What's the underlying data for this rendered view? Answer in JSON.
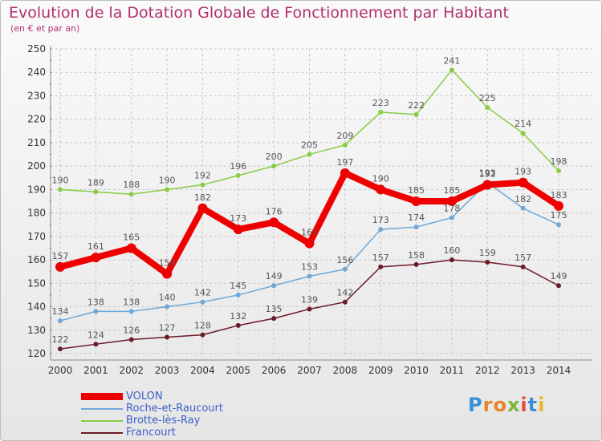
{
  "header": {
    "title": "Evolution de la Dotation Globale de Fonctionnement par Habitant",
    "subtitle": "(en € et par an)"
  },
  "logo": {
    "letters": [
      "P",
      "r",
      "o",
      "x",
      "i",
      "t",
      "i"
    ],
    "colors": [
      "#3a8fd8",
      "#e8832a",
      "#e8832a",
      "#7ab83a",
      "#e84a3a",
      "#3a8fd8",
      "#e8b82a"
    ]
  },
  "colors": {
    "VOLON": "#ee0000",
    "Roche-et-Raucourt": "#6fa8d6",
    "Brotte-lès-Ray": "#88cc44",
    "Francourt": "#6b1a28",
    "grid": "#c8c8c8",
    "axis_text": "#333333"
  },
  "chart_data": {
    "type": "line",
    "title": "Evolution de la Dotation Globale de Fonctionnement par Habitant",
    "subtitle": "(en € et par an)",
    "x": [
      "2000",
      "2001",
      "2002",
      "2003",
      "2004",
      "2005",
      "2006",
      "2007",
      "2008",
      "2009",
      "2010",
      "2011",
      "2012",
      "2013",
      "2014"
    ],
    "ylim": [
      120,
      250
    ],
    "yticks": [
      120,
      130,
      140,
      150,
      160,
      170,
      180,
      190,
      200,
      210,
      220,
      230,
      240,
      250
    ],
    "grid": true,
    "legend_position": "bottom-left",
    "series": [
      {
        "name": "Brotte-lès-Ray",
        "values": [
          190,
          189,
          188,
          190,
          192,
          196,
          200,
          205,
          209,
          223,
          222,
          241,
          225,
          214,
          198
        ]
      },
      {
        "name": "Roche-et-Raucourt",
        "values": [
          134,
          138,
          138,
          140,
          142,
          145,
          149,
          153,
          156,
          173,
          174,
          178,
          193,
          182,
          175
        ]
      },
      {
        "name": "Francourt",
        "values": [
          122,
          124,
          126,
          127,
          128,
          132,
          135,
          139,
          142,
          157,
          158,
          160,
          159,
          157,
          149
        ]
      },
      {
        "name": "VOLON",
        "values": [
          157,
          161,
          165,
          154,
          182,
          173,
          176,
          167,
          197,
          190,
          185,
          185,
          192,
          193,
          183
        ]
      }
    ]
  },
  "legend": {
    "items": [
      "VOLON",
      "Roche-et-Raucourt",
      "Brotte-lès-Ray",
      "Francourt"
    ]
  }
}
